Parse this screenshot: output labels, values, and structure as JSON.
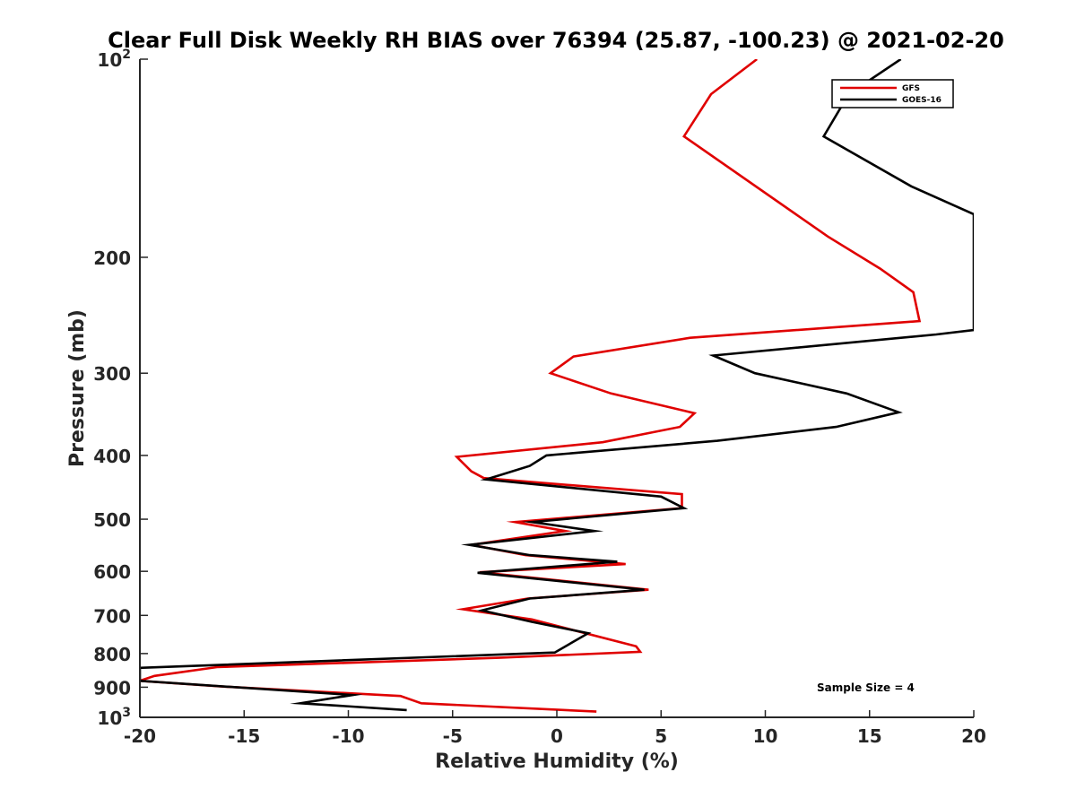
{
  "chart_data": {
    "type": "line",
    "title": "Clear Full Disk Weekly RH BIAS over 76394 (25.87, -100.23) @ 2021-02-20",
    "xlabel": "Relative Humidity (%)",
    "ylabel": "Pressure (mb)",
    "xlim": [
      -20,
      20
    ],
    "ylim": [
      100,
      1000
    ],
    "y_scale": "log",
    "y_reversed": true,
    "grid": false,
    "legend_position": "top-right",
    "x_ticks": [
      -20,
      -15,
      -10,
      -5,
      0,
      5,
      10,
      15,
      20
    ],
    "y_ticks": [
      {
        "value": 100,
        "base": "10",
        "exp": "2"
      },
      {
        "value": 200,
        "label": "200"
      },
      {
        "value": 300,
        "label": "300"
      },
      {
        "value": 400,
        "label": "400"
      },
      {
        "value": 500,
        "label": "500"
      },
      {
        "value": 600,
        "label": "600"
      },
      {
        "value": 700,
        "label": "700"
      },
      {
        "value": 800,
        "label": "800"
      },
      {
        "value": 900,
        "label": "900"
      },
      {
        "value": 1000,
        "base": "10",
        "exp": "3"
      }
    ],
    "series": [
      {
        "name": "GFS",
        "color": "#e00000",
        "points": [
          [
            9.6,
            100
          ],
          [
            7.4,
            113
          ],
          [
            6.1,
            131
          ],
          [
            13.0,
            186
          ],
          [
            15.5,
            208
          ],
          [
            17.1,
            226
          ],
          [
            17.4,
            250
          ],
          [
            6.4,
            265
          ],
          [
            0.8,
            283
          ],
          [
            -0.3,
            300
          ],
          [
            2.6,
            322
          ],
          [
            6.6,
            345
          ],
          [
            5.9,
            362
          ],
          [
            2.2,
            382
          ],
          [
            -4.8,
            402
          ],
          [
            -4.1,
            423
          ],
          [
            -3.5,
            433
          ],
          [
            6.0,
            458
          ],
          [
            6.0,
            468
          ],
          [
            6.0,
            481
          ],
          [
            -2.0,
            505
          ],
          [
            0.4,
            521
          ],
          [
            -4.1,
            547
          ],
          [
            -1.5,
            567
          ],
          [
            3.3,
            585
          ],
          [
            -3.7,
            602
          ],
          [
            4.4,
            640
          ],
          [
            -1.4,
            660
          ],
          [
            -4.5,
            685
          ],
          [
            -1.2,
            710
          ],
          [
            3.8,
            780
          ],
          [
            4.0,
            795
          ],
          [
            -2.8,
            812
          ],
          [
            -16.3,
            839
          ],
          [
            -19.3,
            865
          ],
          [
            -20.0,
            880
          ],
          [
            -16.0,
            898
          ],
          [
            -7.5,
            928
          ],
          [
            -6.5,
            952
          ],
          [
            1.9,
            980
          ]
        ]
      },
      {
        "name": "GOES-16",
        "color": "#000000",
        "points": [
          [
            16.5,
            100
          ],
          [
            14.0,
            113
          ],
          [
            12.8,
            131
          ],
          [
            17.0,
            156
          ],
          [
            20.0,
            172
          ],
          [
            20.0,
            258
          ],
          [
            18.2,
            262
          ],
          [
            7.5,
            282
          ],
          [
            9.5,
            300
          ],
          [
            13.9,
            322
          ],
          [
            16.4,
            344
          ],
          [
            13.4,
            362
          ],
          [
            7.7,
            380
          ],
          [
            -0.5,
            400
          ],
          [
            -1.3,
            415
          ],
          [
            -3.4,
            435
          ],
          [
            5.0,
            462
          ],
          [
            6.1,
            481
          ],
          [
            -1.2,
            505
          ],
          [
            1.8,
            521
          ],
          [
            -4.2,
            547
          ],
          [
            -1.3,
            567
          ],
          [
            2.9,
            580
          ],
          [
            -3.8,
            603
          ],
          [
            4.2,
            640
          ],
          [
            -1.3,
            660
          ],
          [
            -3.6,
            688
          ],
          [
            -1.2,
            716
          ],
          [
            1.5,
            745
          ],
          [
            -0.1,
            797
          ],
          [
            -20.0,
            841
          ],
          [
            -20.0,
            880
          ],
          [
            -9.8,
            925
          ],
          [
            -12.3,
            952
          ],
          [
            -7.2,
            975
          ]
        ]
      }
    ],
    "annotation": "Sample Size = 4"
  }
}
